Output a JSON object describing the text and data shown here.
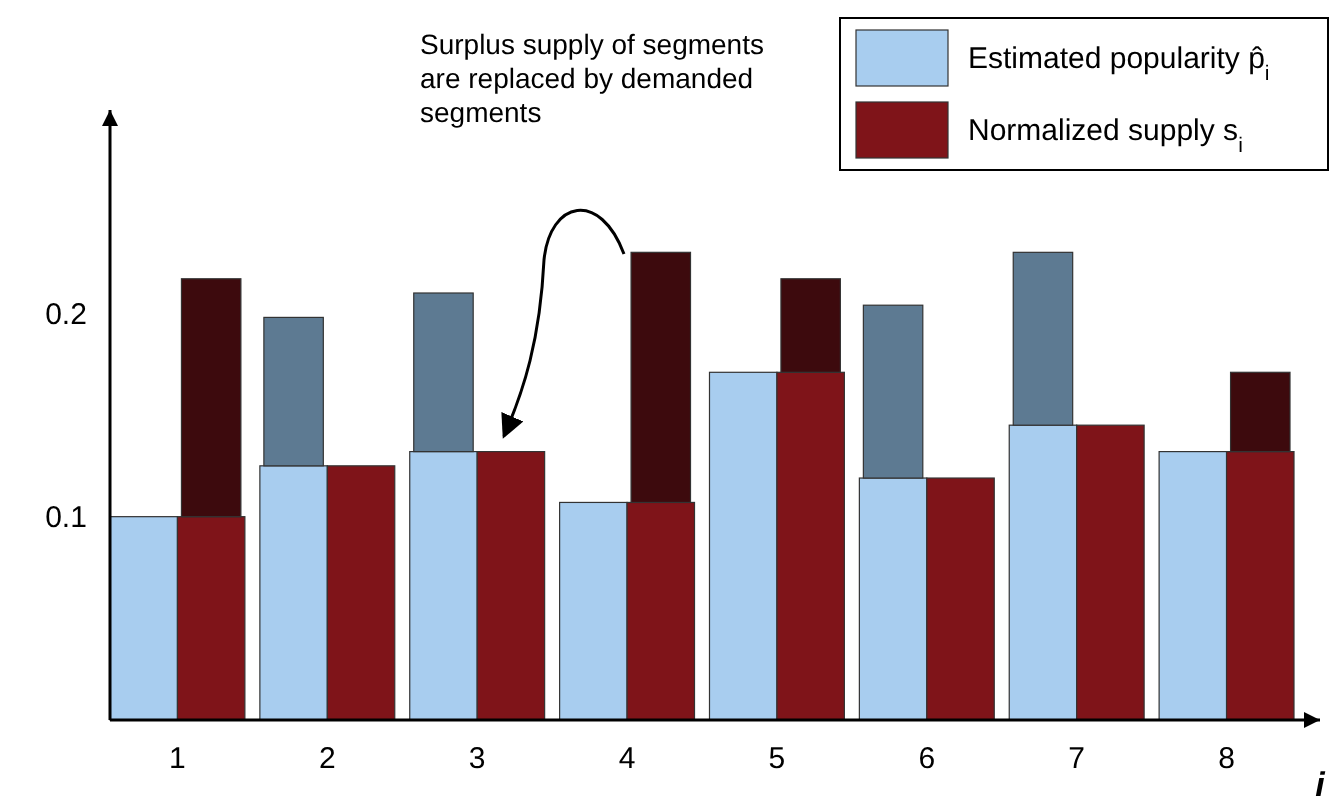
{
  "chart_data": {
    "type": "bar",
    "categories": [
      "1",
      "2",
      "3",
      "4",
      "5",
      "6",
      "7",
      "8"
    ],
    "xlabel": "i",
    "ylim": [
      0,
      0.3
    ],
    "yticks": [
      0.1,
      0.2
    ],
    "legend": "top right",
    "series": [
      {
        "name": "Estimated popularity p̂$_{i}$",
        "color": "#a8cdef",
        "values": [
          0.1,
          0.125,
          0.132,
          0.107,
          0.171,
          0.119,
          0.145,
          0.132
        ]
      },
      {
        "color": "#5d7a92",
        "values": [
          null,
          0.073,
          0.078,
          null,
          null,
          0.085,
          0.085,
          null
        ],
        "base": [
          null,
          0.125,
          0.132,
          null,
          null,
          0.119,
          0.145,
          null
        ]
      },
      {
        "name": "Normalized supply s$_{i}$",
        "color": "#7f1419",
        "values": [
          0.1,
          0.125,
          0.132,
          0.107,
          0.171,
          0.119,
          0.145,
          0.132
        ]
      },
      {
        "color": "#3d0a0d",
        "values": [
          0.117,
          null,
          null,
          0.123,
          0.046,
          null,
          null,
          0.039
        ],
        "base": [
          0.1,
          null,
          null,
          0.107,
          0.171,
          null,
          null,
          0.132
        ]
      }
    ],
    "annotations": [
      "Surplus supply of segments are replaced by demanded segments"
    ]
  }
}
